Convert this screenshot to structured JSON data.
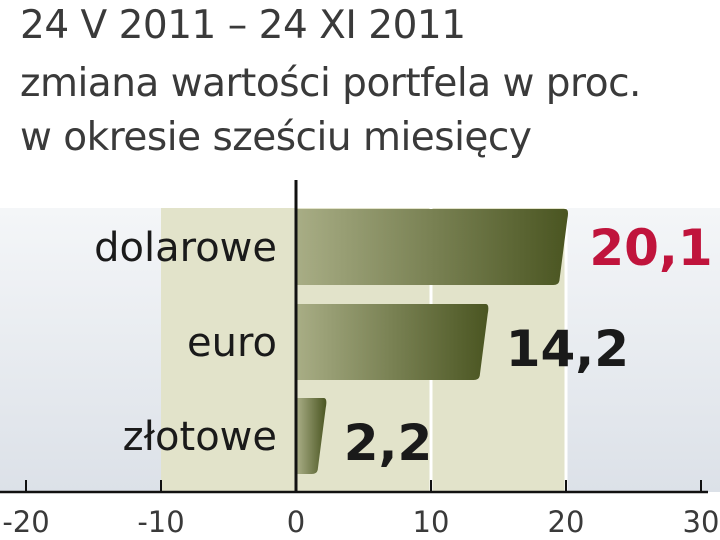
{
  "chart_data": {
    "type": "bar",
    "title_lines": [
      "24 V 2011 – 24 XI 2011",
      "zmiana wartości portfela w proc.",
      "w okresie sześciu miesięcy"
    ],
    "categories": [
      "dolarowe",
      "euro",
      "złotowe"
    ],
    "values": [
      20.1,
      14.2,
      2.2
    ],
    "value_labels": [
      "20,1",
      "14,2",
      "2,2"
    ],
    "xlim": [
      -20,
      30
    ],
    "xticks": [
      "-20",
      "-10",
      "0",
      "10",
      "20",
      "30"
    ],
    "orientation": "horizontal",
    "grid": true,
    "colors": {
      "bar_light": "#a8ad85",
      "bar_dark": "#4a5521",
      "highlight_label": "#c0143c",
      "label": "#1a1a1a",
      "band": "#e2e3ca",
      "background_gradient_top": "#f4f6f8",
      "background_gradient_bottom": "#dce1e8",
      "title": "#3a3a3a"
    },
    "highlight_index": 0
  }
}
